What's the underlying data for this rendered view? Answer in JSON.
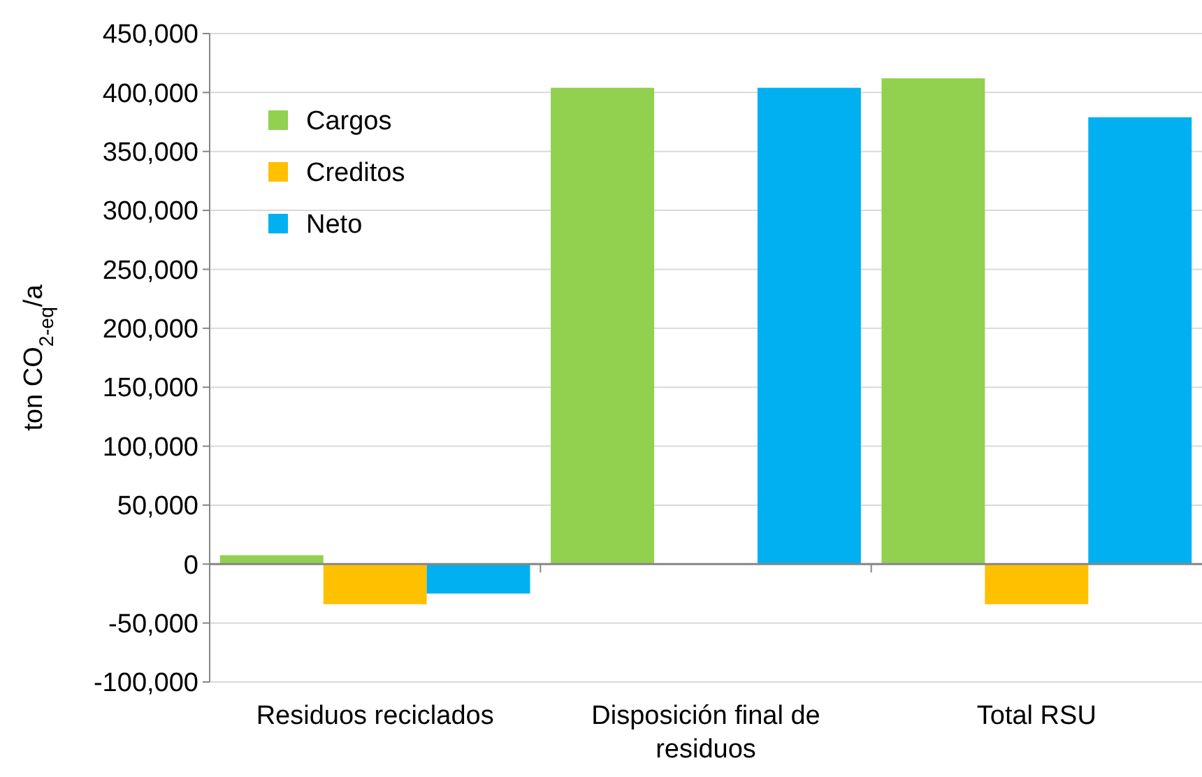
{
  "chart_data": {
    "type": "bar",
    "ylabel": "ton CO$_{2-eq}$/a",
    "categories": [
      "Residuos reciclados",
      "Disposición final de residuos",
      "Total RSU"
    ],
    "series": [
      {
        "name": "Cargos",
        "color": "#92d050",
        "values": [
          7500,
          404000,
          412000
        ]
      },
      {
        "name": "Creditos",
        "color": "#ffc000",
        "values": [
          -34000,
          0,
          -34000
        ]
      },
      {
        "name": "Neto",
        "color": "#00b0f0",
        "values": [
          -25000,
          404000,
          379000
        ]
      }
    ],
    "ylim": [
      -100000,
      450000
    ],
    "yticks": [
      {
        "value": -100000,
        "label": "-100,000"
      },
      {
        "value": -50000,
        "label": "-50,000"
      },
      {
        "value": 0,
        "label": "0"
      },
      {
        "value": 50000,
        "label": "50,000"
      },
      {
        "value": 100000,
        "label": "100,000"
      },
      {
        "value": 150000,
        "label": "150,000"
      },
      {
        "value": 200000,
        "label": "200,000"
      },
      {
        "value": 250000,
        "label": "250,000"
      },
      {
        "value": 300000,
        "label": "300,000"
      },
      {
        "value": 350000,
        "label": "350,000"
      },
      {
        "value": 400000,
        "label": "400,000"
      },
      {
        "value": 450000,
        "label": "450,000"
      }
    ],
    "grid": "y",
    "legend": "top left"
  }
}
